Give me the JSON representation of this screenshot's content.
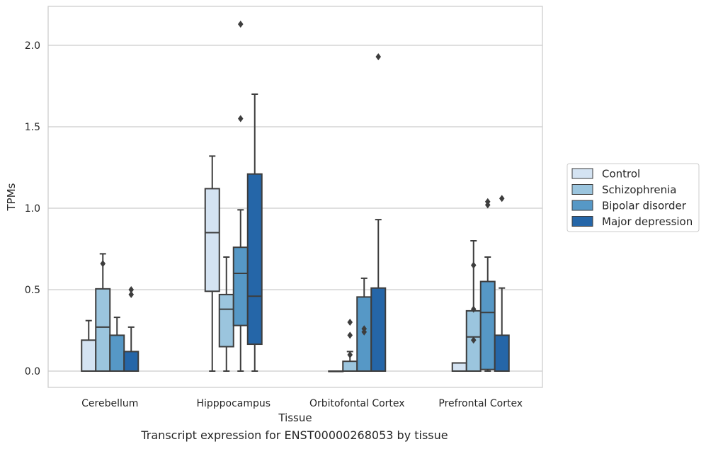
{
  "caption": "Transcript expression for ENST00000268053 by tissue",
  "chart_data": {
    "type": "box",
    "title": "",
    "xlabel": "Tissue",
    "ylabel": "TPMs",
    "ylim": [
      -0.1,
      2.25
    ],
    "yticks": [
      0.0,
      0.5,
      1.0,
      1.5,
      2.0
    ],
    "ytick_labels": [
      "0.0",
      "0.5",
      "1.0",
      "1.5",
      "2.0"
    ],
    "grid": "horizontal",
    "legend_position": "right",
    "categories": [
      "Cerebellum",
      "Hipppocampus",
      "Orbitofontal Cortex",
      "Prefrontal Cortex"
    ],
    "series": [
      {
        "name": "Control",
        "color": "#d4e3f2",
        "boxes": [
          {
            "low": 0.0,
            "q1": 0.0,
            "median": 0.0,
            "q3": 0.19,
            "high": 0.31,
            "outliers": []
          },
          {
            "low": 0.0,
            "q1": 0.49,
            "median": 0.85,
            "q3": 1.12,
            "high": 1.32,
            "outliers": []
          },
          {
            "low": 0.0,
            "q1": 0.0,
            "median": 0.0,
            "q3": 0.0,
            "high": 0.0,
            "outliers": []
          },
          {
            "low": 0.0,
            "q1": 0.0,
            "median": 0.0,
            "q3": 0.05,
            "high": 0.05,
            "outliers": []
          }
        ]
      },
      {
        "name": "Schizophrenia",
        "color": "#9bc5de",
        "boxes": [
          {
            "low": 0.0,
            "q1": 0.0,
            "median": 0.27,
            "q3": 0.505,
            "high": 0.72,
            "outliers": [
              0.66
            ]
          },
          {
            "low": 0.0,
            "q1": 0.15,
            "median": 0.38,
            "q3": 0.47,
            "high": 0.7,
            "outliers": []
          },
          {
            "low": 0.0,
            "q1": 0.0,
            "median": 0.0,
            "q3": 0.06,
            "high": 0.12,
            "outliers": [
              0.1,
              0.22,
              0.3
            ]
          },
          {
            "low": 0.0,
            "q1": 0.0,
            "median": 0.21,
            "q3": 0.37,
            "high": 0.8,
            "outliers": [
              0.19,
              0.38,
              0.65
            ]
          }
        ]
      },
      {
        "name": "Bipolar disorder",
        "color": "#5698c6",
        "boxes": [
          {
            "low": 0.0,
            "q1": 0.0,
            "median": 0.0,
            "q3": 0.22,
            "high": 0.33,
            "outliers": []
          },
          {
            "low": 0.0,
            "q1": 0.28,
            "median": 0.6,
            "q3": 0.76,
            "high": 0.99,
            "outliers": [
              1.55,
              2.13
            ]
          },
          {
            "low": 0.0,
            "q1": 0.0,
            "median": 0.0,
            "q3": 0.455,
            "high": 0.57,
            "outliers": [
              0.24,
              0.26
            ]
          },
          {
            "low": 0.0,
            "q1": 0.01,
            "median": 0.36,
            "q3": 0.55,
            "high": 0.7,
            "outliers": [
              1.02,
              1.04
            ]
          }
        ]
      },
      {
        "name": "Major depression",
        "color": "#2566a8",
        "boxes": [
          {
            "low": 0.0,
            "q1": 0.0,
            "median": 0.0,
            "q3": 0.12,
            "high": 0.27,
            "outliers": [
              0.47,
              0.5
            ]
          },
          {
            "low": 0.0,
            "q1": 0.165,
            "median": 0.46,
            "q3": 1.21,
            "high": 1.7,
            "outliers": []
          },
          {
            "low": 0.0,
            "q1": 0.0,
            "median": 0.0,
            "q3": 0.51,
            "high": 0.93,
            "outliers": [
              1.93
            ]
          },
          {
            "low": 0.0,
            "q1": 0.0,
            "median": 0.0,
            "q3": 0.22,
            "high": 0.51,
            "outliers": [
              1.06
            ]
          }
        ]
      }
    ]
  }
}
